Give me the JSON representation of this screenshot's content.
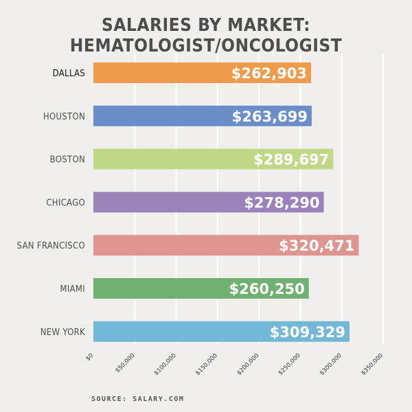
{
  "chart_data": {
    "type": "bar",
    "orientation": "horizontal",
    "title": "SALARIES BY MARKET: HEMATOLOGIST/ONCOLOGIST",
    "categories": [
      "DALLAS",
      "HOUSTON",
      "BOSTON",
      "CHICAGO",
      "SAN FRANCISCO",
      "MIAMI",
      "NEW YORK"
    ],
    "values": [
      262903,
      263699,
      289697,
      278290,
      320471,
      260250,
      309329
    ],
    "value_labels": [
      "$262,903",
      "$263,699",
      "$289,697",
      "$278,290",
      "$320,471",
      "$260,250",
      "$309,329"
    ],
    "colors": [
      "#ee9b4c",
      "#6b8ec8",
      "#c2d889",
      "#9b82bb",
      "#df9690",
      "#70b172",
      "#73b8d6"
    ],
    "highlight_category": "DALLAS",
    "xlim": [
      0,
      350000
    ],
    "xticks": [
      0,
      50000,
      100000,
      150000,
      200000,
      250000,
      300000,
      350000
    ],
    "xtick_labels": [
      "$0",
      "$50,000",
      "$100,000",
      "$150,000",
      "$200,000",
      "$250,000",
      "$300,000",
      "$350,000"
    ],
    "grid": true,
    "source": "SOURCE: SALARY.COM"
  }
}
